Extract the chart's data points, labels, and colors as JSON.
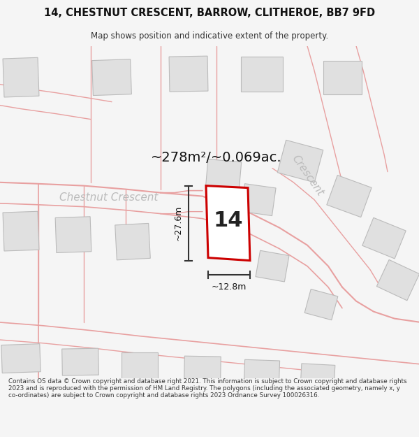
{
  "title": "14, CHESTNUT CRESCENT, BARROW, CLITHEROE, BB7 9FD",
  "subtitle": "Map shows position and indicative extent of the property.",
  "area_label": "~278m²/~0.069ac.",
  "number_label": "14",
  "dim_vertical": "~27.6m",
  "dim_horizontal": "~12.8m",
  "street_label1": "Chestnut Crescent",
  "street_label2": "Crescent",
  "footer": "Contains OS data © Crown copyright and database right 2021. This information is subject to Crown copyright and database rights 2023 and is reproduced with the permission of HM Land Registry. The polygons (including the associated geometry, namely x, y co-ordinates) are subject to Crown copyright and database rights 2023 Ordnance Survey 100026316.",
  "bg_color": "#f5f5f5",
  "map_bg": "#ffffff",
  "road_line_color": "#e8a0a0",
  "building_fill": "#e0e0e0",
  "building_outline": "#bbbbbb",
  "highlight_color": "#cc0000",
  "highlight_fill": "#ffffff",
  "dimension_color": "#333333",
  "street_text_color": "#bbbbbb",
  "label_color": "#111111"
}
